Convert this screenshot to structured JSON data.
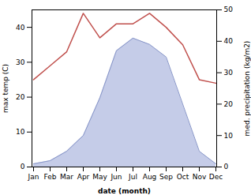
{
  "chart_data": {
    "type": "line",
    "categories": [
      "Jan",
      "Feb",
      "Mar",
      "Apr",
      "May",
      "Jun",
      "Jul",
      "Aug",
      "Sep",
      "Oct",
      "Nov",
      "Dec"
    ],
    "xlabel": "date (month)",
    "ylabel": "max temp (C)",
    "y2label": "med. precipitation (kg/m2)",
    "series": [
      {
        "type": "area",
        "axis": "y2",
        "color": "#c5cce8",
        "values": [
          1,
          2,
          5,
          10,
          22,
          37,
          41,
          39,
          35,
          20,
          5,
          1
        ]
      },
      {
        "type": "line",
        "axis": "y2",
        "color": "#8896c8",
        "values": [
          1,
          2,
          5,
          10,
          22,
          37,
          41,
          39,
          35,
          20,
          5,
          1
        ]
      },
      {
        "type": "line",
        "color": "#c0504d",
        "values": [
          25,
          29,
          33,
          44,
          37,
          41,
          41,
          44,
          40,
          35,
          25,
          24
        ]
      }
    ],
    "ylim": [
      0,
      45
    ],
    "yticks": [
      0,
      10,
      20,
      30,
      40
    ],
    "y2lim": [
      0,
      50
    ],
    "y2ticks": [
      0,
      10,
      20,
      30,
      40,
      50
    ],
    "grid": false
  }
}
